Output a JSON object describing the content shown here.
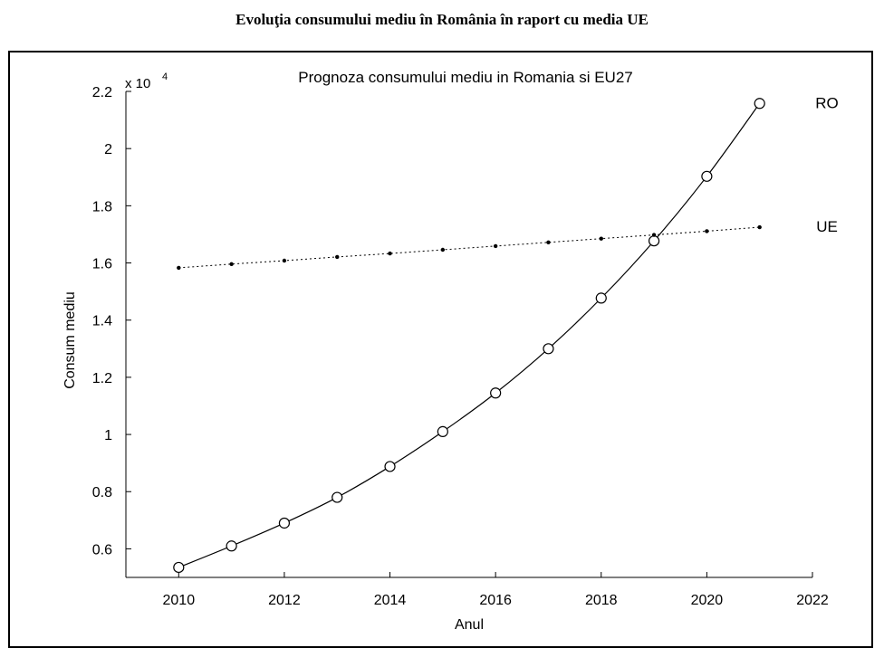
{
  "caption": "Evoluţia consumului mediu în România în raport cu media UE",
  "chart_data": {
    "type": "line",
    "title": "Prognoza consumului mediu in Romania si EU27",
    "xlabel": "Anul",
    "ylabel": "Consum mediu",
    "exponent_base": "x 10",
    "exponent_power": "4",
    "xlim": [
      2009,
      2022
    ],
    "ylim": [
      0.5,
      2.2
    ],
    "x_ticks": [
      2010,
      2012,
      2014,
      2016,
      2018,
      2020,
      2022
    ],
    "x_tick_labels": [
      "2010",
      "2012",
      "2014",
      "2016",
      "2018",
      "2020",
      "2022"
    ],
    "y_ticks": [
      0.6,
      0.8,
      1.0,
      1.2,
      1.4,
      1.6,
      1.8,
      2.0,
      2.2
    ],
    "y_tick_labels": [
      "0.6",
      "0.8",
      "1",
      "1.2",
      "1.4",
      "1.6",
      "1.8",
      "2",
      "2.2"
    ],
    "grid": false,
    "x": [
      2010,
      2011,
      2012,
      2013,
      2014,
      2015,
      2016,
      2017,
      2018,
      2019,
      2020,
      2021
    ],
    "series": [
      {
        "name": "RO",
        "marker": "circle",
        "line": "solid",
        "values": [
          0.535,
          0.61,
          0.69,
          0.78,
          0.888,
          1.01,
          1.145,
          1.3,
          1.477,
          1.677,
          1.903,
          2.158
        ]
      },
      {
        "name": "UE",
        "marker": "dot",
        "line": "dotted",
        "values": [
          1.583,
          1.596,
          1.608,
          1.621,
          1.633,
          1.646,
          1.659,
          1.672,
          1.685,
          1.698,
          1.711,
          1.725
        ]
      }
    ]
  }
}
